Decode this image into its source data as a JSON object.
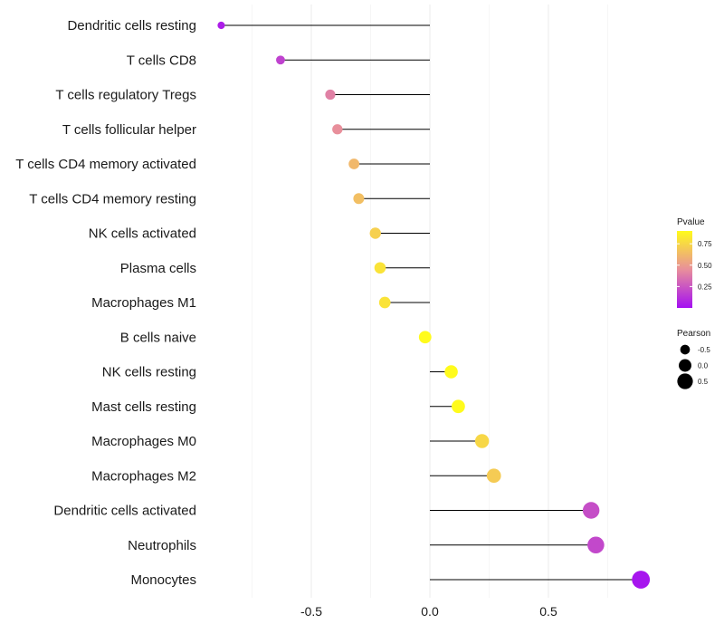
{
  "chart_data": {
    "type": "lollipop",
    "title": "",
    "xlabel": "",
    "ylabel": "",
    "xlim": [
      -0.92,
      0.94
    ],
    "x_ticks": [
      -0.5,
      0.0,
      0.5
    ],
    "x_tick_labels": [
      "-0.5",
      "0.0",
      "0.5"
    ],
    "grid": true,
    "categories": [
      "Dendritic cells resting",
      "T cells CD8",
      "T cells regulatory  Tregs",
      "T cells follicular helper",
      "T cells CD4 memory activated",
      "T cells CD4 memory resting",
      "NK cells activated",
      "Plasma cells",
      "Macrophages M1",
      "B cells naive",
      "NK cells resting",
      "Mast cells resting",
      "Macrophages M0",
      "Macrophages M2",
      "Dendritic cells activated",
      "Neutrophils",
      "Monocytes"
    ],
    "pearson": [
      -0.88,
      -0.63,
      -0.42,
      -0.39,
      -0.32,
      -0.3,
      -0.23,
      -0.21,
      -0.19,
      -0.02,
      0.09,
      0.12,
      0.22,
      0.27,
      0.68,
      0.7,
      0.89
    ],
    "pvalue": [
      0.05,
      0.18,
      0.4,
      0.45,
      0.62,
      0.65,
      0.72,
      0.8,
      0.8,
      0.97,
      0.95,
      0.93,
      0.75,
      0.7,
      0.22,
      0.2,
      0.02
    ],
    "legend": {
      "color_title": "Pvalue",
      "color_ticks": [
        0.25,
        0.5,
        0.75
      ],
      "color_tick_labels": [
        "0.25",
        "0.50",
        "0.75"
      ],
      "color_low": "#a40ff2",
      "color_mid": "#e88f9b",
      "color_high": "#fffb1c",
      "color_range": [
        0.0,
        0.9
      ],
      "size_title": "Pearson",
      "size_values": [
        -0.5,
        0.0,
        0.5
      ],
      "size_labels": [
        "-0.5",
        "0.0",
        "0.5"
      ],
      "placement": "right"
    }
  }
}
